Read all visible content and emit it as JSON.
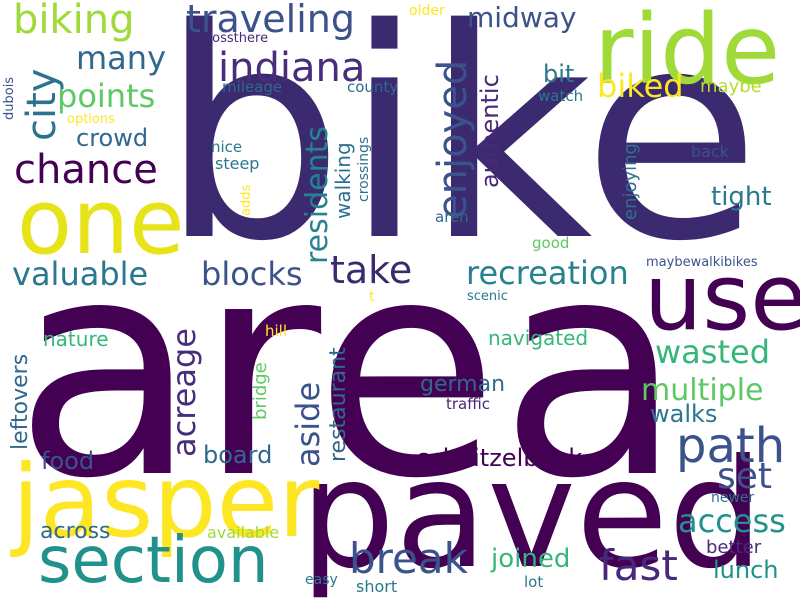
{
  "cloud": {
    "words": [
      {
        "text": "area",
        "color": "#440154"
      },
      {
        "text": "bike",
        "color": "#3b2a6f"
      },
      {
        "text": "paved",
        "color": "#440154"
      },
      {
        "text": "jasper",
        "color": "#fde725"
      },
      {
        "text": "ride",
        "color": "#a0da39"
      },
      {
        "text": "one",
        "color": "#e6e419"
      },
      {
        "text": "use",
        "color": "#440154"
      },
      {
        "text": "section",
        "color": "#21918c"
      },
      {
        "text": "biking",
        "color": "#a0da39"
      },
      {
        "text": "traveling",
        "color": "#3b528b"
      },
      {
        "text": "midway",
        "color": "#3b528b"
      },
      {
        "text": "indiana",
        "color": "#472d7b"
      },
      {
        "text": "many",
        "color": "#31688e"
      },
      {
        "text": "city",
        "color": "#2c728e"
      },
      {
        "text": "points",
        "color": "#5ec962"
      },
      {
        "text": "enjoyed",
        "color": "#3b528b"
      },
      {
        "text": "biked",
        "color": "#fde725"
      },
      {
        "text": "bit",
        "color": "#2a788e"
      },
      {
        "text": "authentic",
        "color": "#482878"
      },
      {
        "text": "residents",
        "color": "#26828e"
      },
      {
        "text": "crowd",
        "color": "#31688e"
      },
      {
        "text": "chance",
        "color": "#440154"
      },
      {
        "text": "take",
        "color": "#3b2a6f"
      },
      {
        "text": "valuable",
        "color": "#2a788e"
      },
      {
        "text": "blocks",
        "color": "#3b528b"
      },
      {
        "text": "recreation",
        "color": "#26828e"
      },
      {
        "text": "tight",
        "color": "#2a788e"
      },
      {
        "text": "walking",
        "color": "#2c728e"
      },
      {
        "text": "crossings",
        "color": "#2c728e"
      },
      {
        "text": "enjoying",
        "color": "#2c728e"
      },
      {
        "text": "back",
        "color": "#3b528b"
      },
      {
        "text": "nice",
        "color": "#2a788e"
      },
      {
        "text": "steep",
        "color": "#2a788e"
      },
      {
        "text": "adds",
        "color": "#fde725"
      },
      {
        "text": "aren",
        "color": "#31688e"
      },
      {
        "text": "good",
        "color": "#5ec962"
      },
      {
        "text": "maybe",
        "color": "#b5de2b"
      },
      {
        "text": "watch",
        "color": "#2a788e"
      },
      {
        "text": "county",
        "color": "#31688e"
      },
      {
        "text": "mileage",
        "color": "#31688e"
      },
      {
        "text": "acrossthere",
        "color": "#482878"
      },
      {
        "text": "older",
        "color": "#fde725"
      },
      {
        "text": "options",
        "color": "#fde725"
      },
      {
        "text": "dubois",
        "color": "#3b528b"
      },
      {
        "text": "maybewalkibikes",
        "color": "#3b528b"
      },
      {
        "text": "t",
        "color": "#fde725"
      },
      {
        "text": "scenic",
        "color": "#2a788e"
      },
      {
        "text": "acreage",
        "color": "#472d7b"
      },
      {
        "text": "aside",
        "color": "#3b528b"
      },
      {
        "text": "restaurant",
        "color": "#31688e"
      },
      {
        "text": "leftovers",
        "color": "#31688e"
      },
      {
        "text": "nature",
        "color": "#35b779"
      },
      {
        "text": "hill",
        "color": "#fde725"
      },
      {
        "text": "bridge",
        "color": "#5ec962"
      },
      {
        "text": "navigated",
        "color": "#35b779"
      },
      {
        "text": "wasted",
        "color": "#35b779"
      },
      {
        "text": "multiple",
        "color": "#5ec962"
      },
      {
        "text": "german",
        "color": "#31688e"
      },
      {
        "text": "traffic",
        "color": "#482878"
      },
      {
        "text": "walks",
        "color": "#2a788e"
      },
      {
        "text": "path",
        "color": "#3b528b"
      },
      {
        "text": "set",
        "color": "#3b528b"
      },
      {
        "text": "food",
        "color": "#3b528b"
      },
      {
        "text": "board",
        "color": "#31688e"
      },
      {
        "text": "schnitzelbank",
        "color": "#440154"
      },
      {
        "text": "break",
        "color": "#3b528b"
      },
      {
        "text": "access",
        "color": "#21918c"
      },
      {
        "text": "fast",
        "color": "#482878"
      },
      {
        "text": "joined",
        "color": "#35b779"
      },
      {
        "text": "lunch",
        "color": "#21918c"
      },
      {
        "text": "better",
        "color": "#472d7b"
      },
      {
        "text": "newer",
        "color": "#2c728e"
      },
      {
        "text": "across",
        "color": "#31688e"
      },
      {
        "text": "available",
        "color": "#a0da39"
      },
      {
        "text": "easy",
        "color": "#2a788e"
      },
      {
        "text": "short",
        "color": "#2a788e"
      },
      {
        "text": "lot",
        "color": "#2a788e"
      }
    ]
  }
}
